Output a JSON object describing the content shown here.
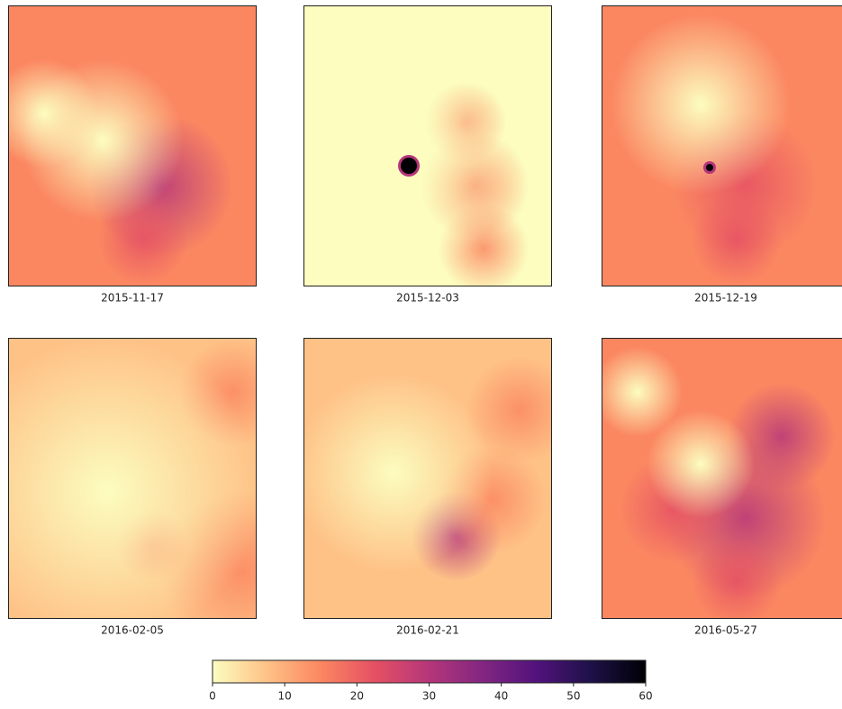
{
  "chart_data": {
    "type": "image-grid",
    "panels": [
      "2015-11-17",
      "2015-12-03",
      "2015-12-19",
      "2016-02-05",
      "2016-02-21",
      "2016-05-27"
    ],
    "colorbar": {
      "lim": [
        0,
        60
      ],
      "ticks": [
        0,
        10,
        20,
        30,
        40,
        50,
        60
      ],
      "colormap": [
        "#fcfdbf",
        "#fec287",
        "#fb8761",
        "#e55064",
        "#b5367a",
        "#822681",
        "#51127c",
        "#1d1147",
        "#000004"
      ]
    }
  }
}
